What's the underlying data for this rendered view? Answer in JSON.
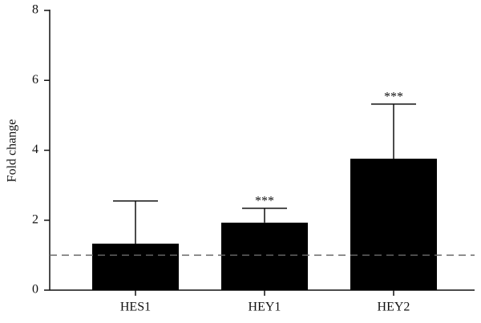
{
  "chart_data": {
    "type": "bar",
    "y_label": "Fold change",
    "categories": [
      "HES1",
      "HEY1",
      "HEY2"
    ],
    "values": [
      1.33,
      1.93,
      3.76
    ],
    "errors": [
      1.22,
      0.41,
      1.56
    ],
    "significance": [
      null,
      "***",
      "***"
    ],
    "color": "#000000",
    "reference_line": 1,
    "ylim": [
      0,
      8
    ],
    "yticks": [
      0,
      2,
      4,
      6,
      8
    ]
  }
}
